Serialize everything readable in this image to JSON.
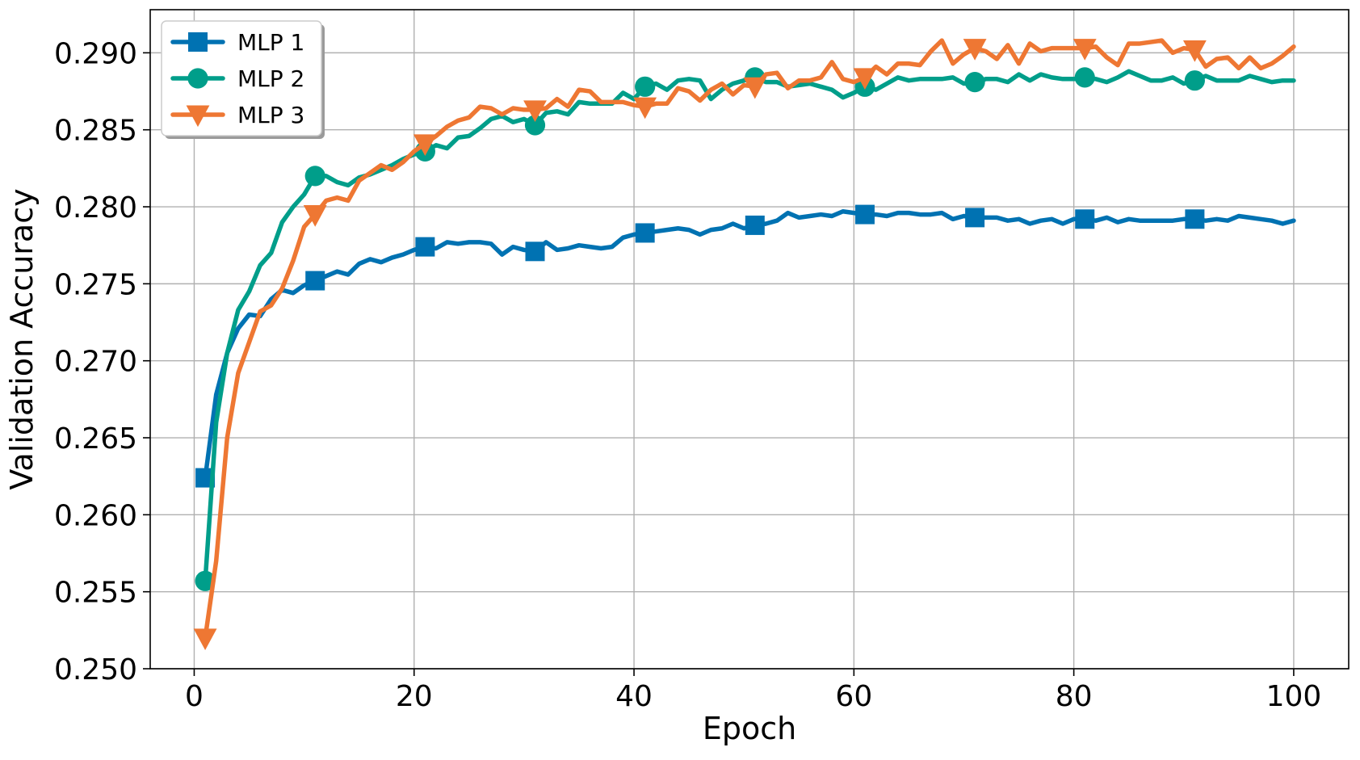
{
  "chart_data": {
    "type": "line",
    "title": "",
    "xlabel": "Epoch",
    "ylabel": "Validation Accuracy",
    "xlim": [
      -4,
      105
    ],
    "ylim": [
      0.25,
      0.2928
    ],
    "xticks": [
      0,
      20,
      40,
      60,
      80,
      100
    ],
    "xtick_labels": [
      "0",
      "20",
      "40",
      "60",
      "80",
      "100"
    ],
    "yticks": [
      0.25,
      0.255,
      0.26,
      0.265,
      0.27,
      0.275,
      0.28,
      0.285,
      0.29
    ],
    "ytick_labels": [
      "0.250",
      "0.255",
      "0.260",
      "0.265",
      "0.270",
      "0.275",
      "0.280",
      "0.285",
      "0.290"
    ],
    "grid": true,
    "legend_position": "top-left",
    "marker_every": 10,
    "marker_start": 1,
    "series": [
      {
        "name": "MLP 1",
        "color": "#0072b2",
        "marker": "square",
        "x_start": 1,
        "values": [
          0.2624,
          0.2678,
          0.2705,
          0.2721,
          0.273,
          0.2729,
          0.274,
          0.2746,
          0.2744,
          0.2749,
          0.2752,
          0.2755,
          0.2758,
          0.2756,
          0.2763,
          0.2766,
          0.2764,
          0.2767,
          0.2769,
          0.2772,
          0.2774,
          0.2773,
          0.2777,
          0.2776,
          0.2777,
          0.2777,
          0.2776,
          0.2769,
          0.2774,
          0.2772,
          0.2771,
          0.2777,
          0.2772,
          0.2773,
          0.2775,
          0.2774,
          0.2773,
          0.2774,
          0.278,
          0.2782,
          0.2783,
          0.2784,
          0.2785,
          0.2786,
          0.2785,
          0.2782,
          0.2785,
          0.2786,
          0.2789,
          0.2786,
          0.2788,
          0.2789,
          0.2791,
          0.2796,
          0.2793,
          0.2794,
          0.2795,
          0.2794,
          0.2797,
          0.2796,
          0.2795,
          0.2795,
          0.2794,
          0.2796,
          0.2796,
          0.2795,
          0.2795,
          0.2796,
          0.2792,
          0.2794,
          0.2793,
          0.2793,
          0.2793,
          0.2791,
          0.2792,
          0.2789,
          0.2791,
          0.2792,
          0.2789,
          0.2792,
          0.2792,
          0.2791,
          0.2793,
          0.279,
          0.2792,
          0.2791,
          0.2791,
          0.2791,
          0.2791,
          0.2792,
          0.2792,
          0.2791,
          0.2792,
          0.2791,
          0.2794,
          0.2793,
          0.2792,
          0.2791,
          0.2789,
          0.2791
        ]
      },
      {
        "name": "MLP 2",
        "color": "#009e8a",
        "marker": "circle",
        "x_start": 1,
        "values": [
          0.2557,
          0.266,
          0.2705,
          0.2733,
          0.2745,
          0.2762,
          0.277,
          0.279,
          0.28,
          0.2808,
          0.282,
          0.282,
          0.2816,
          0.2814,
          0.2819,
          0.2821,
          0.2824,
          0.2827,
          0.2831,
          0.2834,
          0.2836,
          0.284,
          0.2838,
          0.2845,
          0.2846,
          0.2851,
          0.2857,
          0.2859,
          0.2855,
          0.2857,
          0.2853,
          0.2861,
          0.2862,
          0.286,
          0.2868,
          0.2867,
          0.2867,
          0.2867,
          0.2874,
          0.287,
          0.2878,
          0.288,
          0.2876,
          0.2882,
          0.2883,
          0.2882,
          0.287,
          0.2876,
          0.288,
          0.2882,
          0.2884,
          0.2881,
          0.2881,
          0.2878,
          0.2879,
          0.288,
          0.2878,
          0.2876,
          0.2871,
          0.2874,
          0.2878,
          0.2876,
          0.288,
          0.2884,
          0.2882,
          0.2883,
          0.2883,
          0.2883,
          0.2884,
          0.288,
          0.2881,
          0.2883,
          0.2883,
          0.2881,
          0.2886,
          0.2882,
          0.2886,
          0.2884,
          0.2883,
          0.2883,
          0.2884,
          0.2883,
          0.2881,
          0.2884,
          0.2888,
          0.2885,
          0.2882,
          0.2882,
          0.2884,
          0.288,
          0.2882,
          0.2885,
          0.2882,
          0.2882,
          0.2882,
          0.2885,
          0.2883,
          0.2881,
          0.2882,
          0.2882
        ]
      },
      {
        "name": "MLP 3",
        "color": "#ee7733",
        "marker": "triangle-down",
        "x_start": 1,
        "values": [
          0.252,
          0.257,
          0.265,
          0.2692,
          0.2712,
          0.2732,
          0.2736,
          0.2747,
          0.2765,
          0.2787,
          0.2795,
          0.2804,
          0.2806,
          0.2804,
          0.2817,
          0.2822,
          0.2827,
          0.2824,
          0.2829,
          0.2836,
          0.2841,
          0.2846,
          0.2852,
          0.2856,
          0.2858,
          0.2865,
          0.2864,
          0.286,
          0.2864,
          0.2863,
          0.2863,
          0.2864,
          0.287,
          0.2865,
          0.2876,
          0.2875,
          0.2868,
          0.2868,
          0.2868,
          0.2866,
          0.2865,
          0.2867,
          0.2867,
          0.2877,
          0.2875,
          0.2869,
          0.2876,
          0.288,
          0.2873,
          0.2879,
          0.2878,
          0.2886,
          0.2887,
          0.2877,
          0.2882,
          0.2882,
          0.2884,
          0.2894,
          0.2883,
          0.2881,
          0.2884,
          0.2891,
          0.2886,
          0.2893,
          0.2893,
          0.2892,
          0.2901,
          0.2908,
          0.2893,
          0.2899,
          0.2903,
          0.2901,
          0.2896,
          0.2905,
          0.2893,
          0.2906,
          0.2901,
          0.2903,
          0.2903,
          0.2903,
          0.2903,
          0.2904,
          0.2897,
          0.2892,
          0.2906,
          0.2906,
          0.2907,
          0.2908,
          0.29,
          0.2903,
          0.2902,
          0.2891,
          0.2896,
          0.2897,
          0.289,
          0.2897,
          0.289,
          0.2893,
          0.2898,
          0.2904
        ]
      }
    ]
  }
}
